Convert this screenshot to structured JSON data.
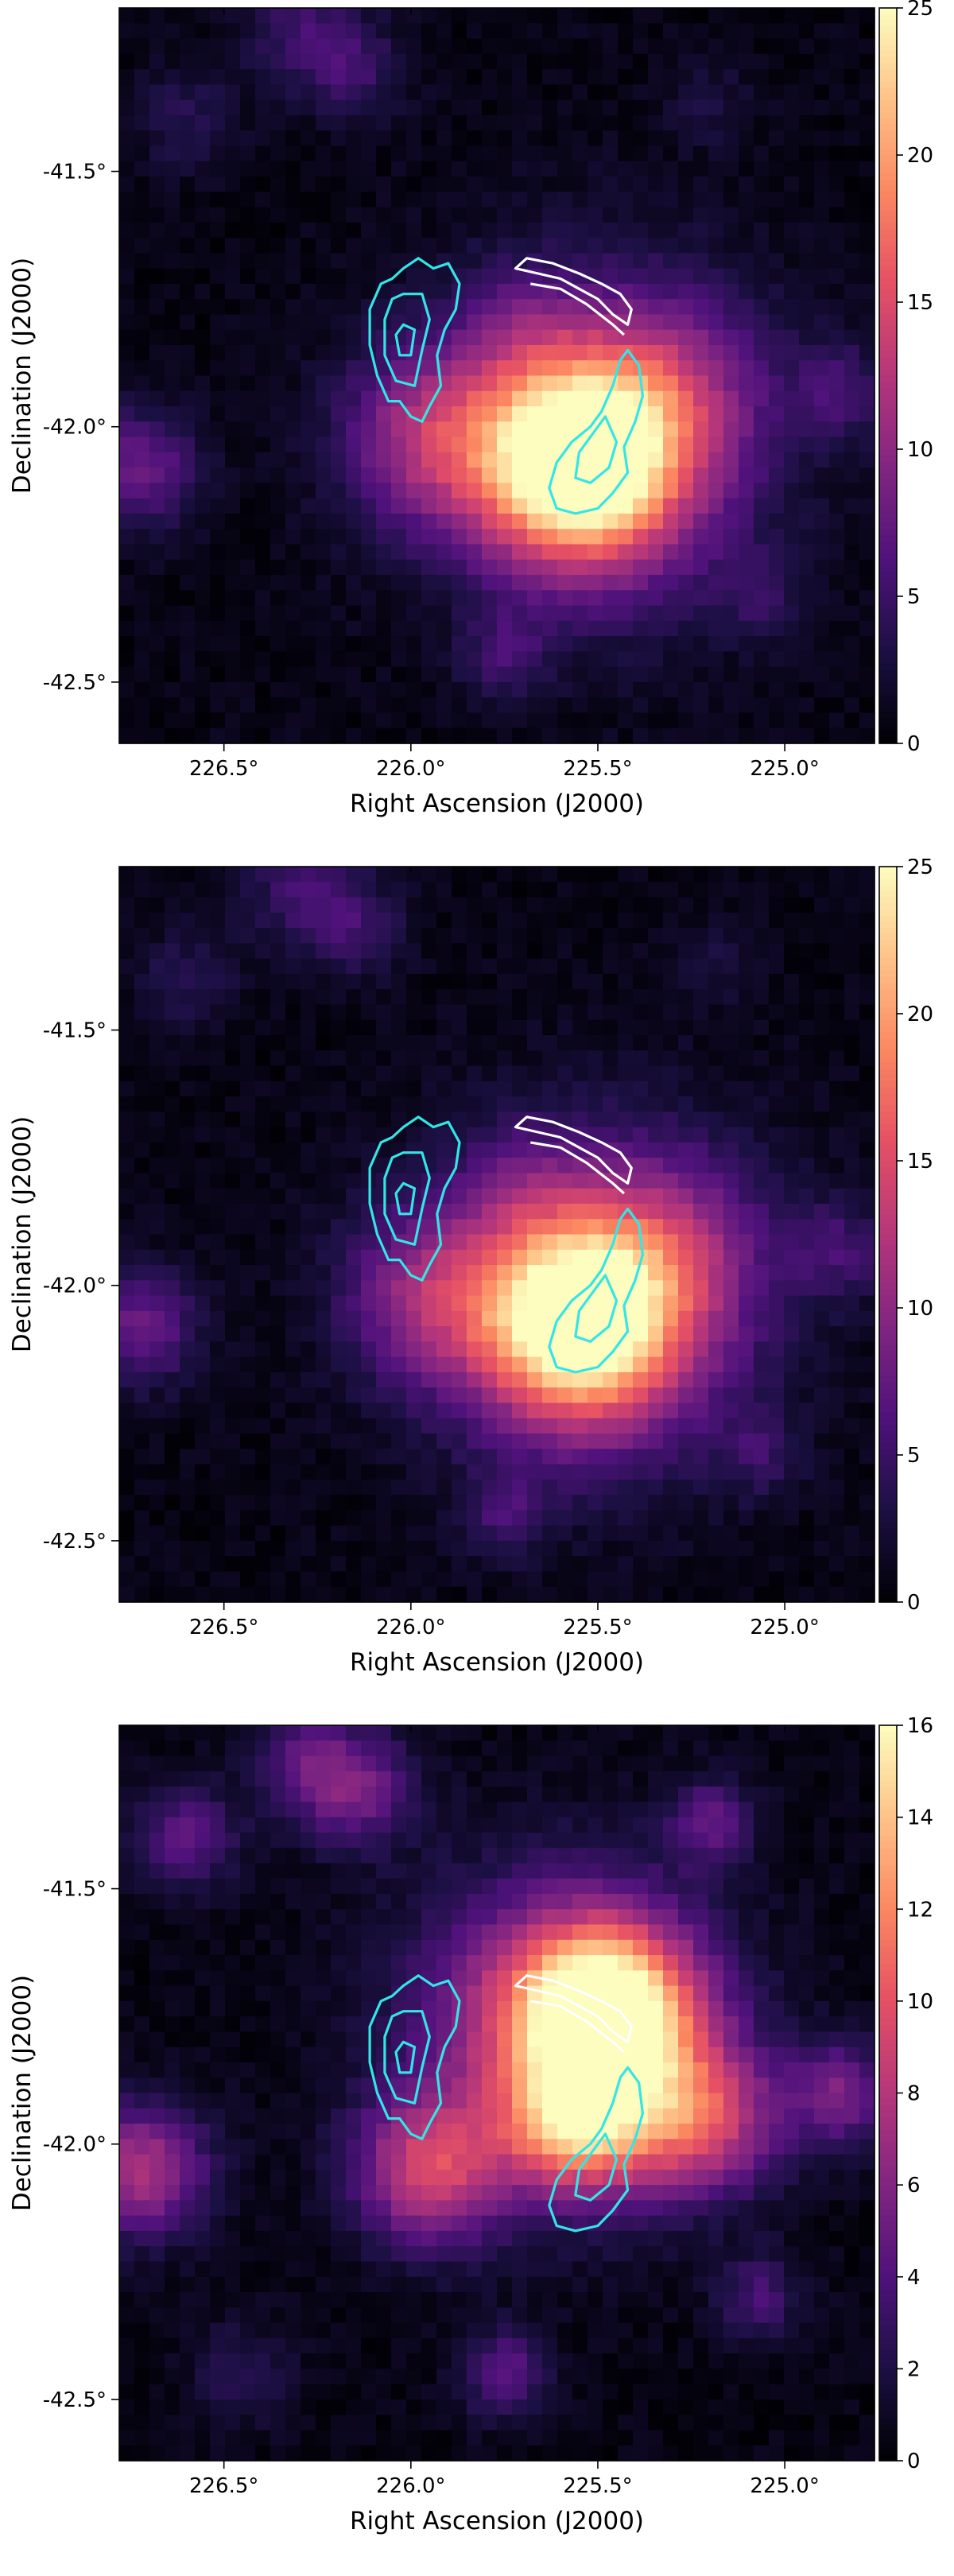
{
  "colormap_stops": [
    "#000004",
    "#1c1044",
    "#4f127b",
    "#812581",
    "#b5367a",
    "#e55064",
    "#fb8761",
    "#fec287",
    "#fcfdbf"
  ],
  "contour_colors": {
    "cyan": "#33e6e6",
    "white": "#ffffff"
  },
  "chart_data": [
    {
      "type": "heatmap",
      "xlabel": "Right Ascension (J2000)",
      "ylabel": "Declination (J2000)",
      "xlim": [
        226.78,
        224.76
      ],
      "ylim": [
        -42.62,
        -41.18
      ],
      "xticks": [
        226.5,
        226.0,
        225.5,
        225.0
      ],
      "xtick_labels": [
        "226.5°",
        "226.0°",
        "225.5°",
        "225.0°"
      ],
      "yticks": [
        -41.5,
        -42.0,
        -42.5
      ],
      "ytick_labels": [
        "-41.5°",
        "-42.0°",
        "-42.5°"
      ],
      "colorbar": {
        "min": 0,
        "max": 25,
        "ticks": [
          0,
          5,
          10,
          15,
          20,
          25
        ]
      },
      "emission_sources": [
        {
          "ra": 225.55,
          "dec": -42.07,
          "amp": 24,
          "sigma": 0.13
        },
        {
          "ra": 225.5,
          "dec": -42.02,
          "amp": 10,
          "sigma": 0.22
        },
        {
          "ra": 225.95,
          "dec": -42.02,
          "amp": 9,
          "sigma": 0.12
        },
        {
          "ra": 225.3,
          "dec": -41.93,
          "amp": 5,
          "sigma": 0.12
        },
        {
          "ra": 226.72,
          "dec": -42.08,
          "amp": 7,
          "sigma": 0.08
        },
        {
          "ra": 224.85,
          "dec": -41.93,
          "amp": 4,
          "sigma": 0.07
        },
        {
          "ra": 226.3,
          "dec": -41.22,
          "amp": 4,
          "sigma": 0.08
        },
        {
          "ra": 226.15,
          "dec": -41.3,
          "amp": 4,
          "sigma": 0.07
        },
        {
          "ra": 226.6,
          "dec": -41.4,
          "amp": 3,
          "sigma": 0.07
        },
        {
          "ra": 225.75,
          "dec": -42.45,
          "amp": 4,
          "sigma": 0.06
        },
        {
          "ra": 225.07,
          "dec": -42.33,
          "amp": 3,
          "sigma": 0.06
        },
        {
          "ra": 225.7,
          "dec": -41.8,
          "amp": 3,
          "sigma": 0.08
        },
        {
          "ra": 225.2,
          "dec": -41.37,
          "amp": 2,
          "sigma": 0.06
        }
      ]
    },
    {
      "type": "heatmap",
      "xlabel": "Right Ascension (J2000)",
      "ylabel": "Declination (J2000)",
      "xlim": [
        226.78,
        224.76
      ],
      "ylim": [
        -42.62,
        -41.18
      ],
      "xticks": [
        226.5,
        226.0,
        225.5,
        225.0
      ],
      "xtick_labels": [
        "226.5°",
        "226.0°",
        "225.5°",
        "225.0°"
      ],
      "yticks": [
        -41.5,
        -42.0,
        -42.5
      ],
      "ytick_labels": [
        "-41.5°",
        "-42.0°",
        "-42.5°"
      ],
      "colorbar": {
        "min": 0,
        "max": 25,
        "ticks": [
          0,
          5,
          10,
          15,
          20,
          25
        ]
      },
      "emission_sources": [
        {
          "ra": 225.55,
          "dec": -42.07,
          "amp": 22,
          "sigma": 0.13
        },
        {
          "ra": 225.5,
          "dec": -42.02,
          "amp": 10,
          "sigma": 0.22
        },
        {
          "ra": 225.95,
          "dec": -42.02,
          "amp": 8,
          "sigma": 0.12
        },
        {
          "ra": 225.3,
          "dec": -41.93,
          "amp": 5,
          "sigma": 0.12
        },
        {
          "ra": 226.72,
          "dec": -42.08,
          "amp": 7,
          "sigma": 0.08
        },
        {
          "ra": 224.85,
          "dec": -41.93,
          "amp": 4,
          "sigma": 0.07
        },
        {
          "ra": 226.3,
          "dec": -41.22,
          "amp": 4,
          "sigma": 0.08
        },
        {
          "ra": 226.15,
          "dec": -41.3,
          "amp": 4,
          "sigma": 0.07
        },
        {
          "ra": 226.6,
          "dec": -41.4,
          "amp": 3,
          "sigma": 0.07
        },
        {
          "ra": 225.75,
          "dec": -42.45,
          "amp": 4,
          "sigma": 0.06
        },
        {
          "ra": 225.07,
          "dec": -42.33,
          "amp": 3,
          "sigma": 0.06
        },
        {
          "ra": 225.7,
          "dec": -41.8,
          "amp": 3,
          "sigma": 0.08
        },
        {
          "ra": 225.2,
          "dec": -41.37,
          "amp": 2,
          "sigma": 0.06
        }
      ]
    },
    {
      "type": "heatmap",
      "xlabel": "Right Ascension (J2000)",
      "ylabel": "Declination (J2000)",
      "xlim": [
        226.78,
        224.76
      ],
      "ylim": [
        -42.62,
        -41.18
      ],
      "xticks": [
        226.5,
        226.0,
        225.5,
        225.0
      ],
      "xtick_labels": [
        "226.5°",
        "226.0°",
        "225.5°",
        "225.0°"
      ],
      "yticks": [
        -41.5,
        -42.0,
        -42.5
      ],
      "ytick_labels": [
        "-41.5°",
        "-42.0°",
        "-42.5°"
      ],
      "colorbar": {
        "min": 0,
        "max": 16,
        "ticks": [
          0,
          2,
          4,
          6,
          8,
          10,
          12,
          14,
          16
        ]
      },
      "emission_sources": [
        {
          "ra": 225.48,
          "dec": -41.75,
          "amp": 15,
          "sigma": 0.12
        },
        {
          "ra": 225.6,
          "dec": -41.78,
          "amp": 8,
          "sigma": 0.2
        },
        {
          "ra": 225.95,
          "dec": -42.05,
          "amp": 8,
          "sigma": 0.1
        },
        {
          "ra": 225.6,
          "dec": -41.97,
          "amp": 6,
          "sigma": 0.08
        },
        {
          "ra": 225.2,
          "dec": -41.95,
          "amp": 7,
          "sigma": 0.1
        },
        {
          "ra": 225.45,
          "dec": -41.97,
          "amp": 5,
          "sigma": 0.1
        },
        {
          "ra": 226.72,
          "dec": -42.05,
          "amp": 7,
          "sigma": 0.09
        },
        {
          "ra": 224.85,
          "dec": -41.9,
          "amp": 5,
          "sigma": 0.07
        },
        {
          "ra": 226.15,
          "dec": -41.3,
          "amp": 5,
          "sigma": 0.08
        },
        {
          "ra": 226.3,
          "dec": -41.25,
          "amp": 3,
          "sigma": 0.07
        },
        {
          "ra": 226.6,
          "dec": -41.4,
          "amp": 4,
          "sigma": 0.07
        },
        {
          "ra": 225.75,
          "dec": -42.45,
          "amp": 4,
          "sigma": 0.06
        },
        {
          "ra": 225.07,
          "dec": -42.3,
          "amp": 3,
          "sigma": 0.06
        },
        {
          "ra": 225.2,
          "dec": -41.37,
          "amp": 4,
          "sigma": 0.06
        },
        {
          "ra": 226.45,
          "dec": -42.45,
          "amp": 2,
          "sigma": 0.07
        }
      ]
    }
  ]
}
